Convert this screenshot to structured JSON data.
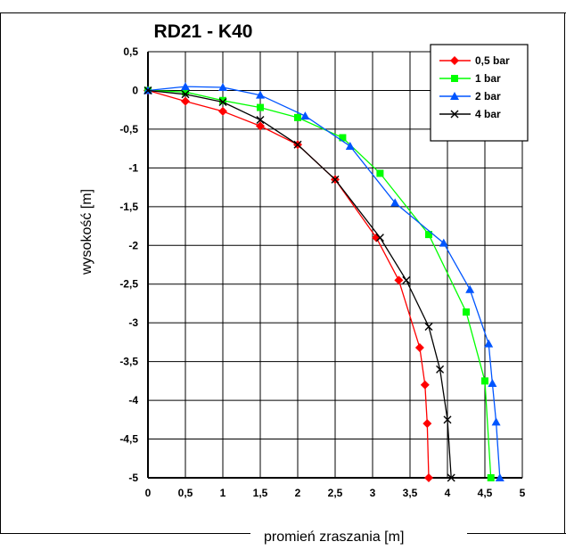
{
  "chart_data": {
    "type": "line",
    "title": "RD21 - K40",
    "xlabel": "promień zraszania [m]",
    "ylabel": "wysokość [m]",
    "xlim": [
      0,
      5
    ],
    "ylim": [
      -5,
      0.5
    ],
    "x_ticks": [
      "0",
      "0,5",
      "1",
      "1,5",
      "2",
      "2,5",
      "3",
      "3,5",
      "4",
      "4,5",
      "5"
    ],
    "y_ticks": [
      "0,5",
      "0",
      "-0,5",
      "-1",
      "-1,5",
      "-2",
      "-2,5",
      "-3",
      "-3,5",
      "-4",
      "-4,5",
      "-5"
    ],
    "grid": true,
    "legend_position": "top-right",
    "series": [
      {
        "name": "0,5 bar",
        "color": "#ff0000",
        "marker": "diamond",
        "x": [
          0,
          0.5,
          1.0,
          1.5,
          2.0,
          2.5,
          3.05,
          3.35,
          3.63,
          3.7,
          3.73,
          3.75
        ],
        "y": [
          0,
          -0.14,
          -0.27,
          -0.46,
          -0.7,
          -1.15,
          -1.9,
          -2.45,
          -3.32,
          -3.8,
          -4.3,
          -5.0
        ]
      },
      {
        "name": "1 bar",
        "color": "#00ff00",
        "marker": "square",
        "x": [
          0,
          0.5,
          1.0,
          1.5,
          2.0,
          2.6,
          3.1,
          3.75,
          4.25,
          4.5,
          4.58
        ],
        "y": [
          0,
          -0.02,
          -0.13,
          -0.22,
          -0.35,
          -0.61,
          -1.07,
          -1.86,
          -2.86,
          -3.75,
          -5.0
        ]
      },
      {
        "name": "2 bar",
        "color": "#0055ff",
        "marker": "triangle",
        "x": [
          0,
          0.5,
          1.0,
          1.5,
          2.1,
          2.7,
          3.3,
          3.95,
          4.3,
          4.55,
          4.6,
          4.65,
          4.7
        ],
        "y": [
          0,
          0.05,
          0.04,
          -0.06,
          -0.33,
          -0.72,
          -1.45,
          -1.97,
          -2.57,
          -3.27,
          -3.78,
          -4.28,
          -5.0
        ]
      },
      {
        "name": "4 bar",
        "color": "#000000",
        "marker": "x",
        "x": [
          0,
          0.5,
          1.0,
          1.5,
          2.0,
          2.5,
          3.1,
          3.45,
          3.75,
          3.9,
          4.0,
          4.05
        ],
        "y": [
          0,
          -0.05,
          -0.15,
          -0.38,
          -0.7,
          -1.15,
          -1.9,
          -2.45,
          -3.05,
          -3.6,
          -4.25,
          -5.0
        ]
      }
    ]
  }
}
